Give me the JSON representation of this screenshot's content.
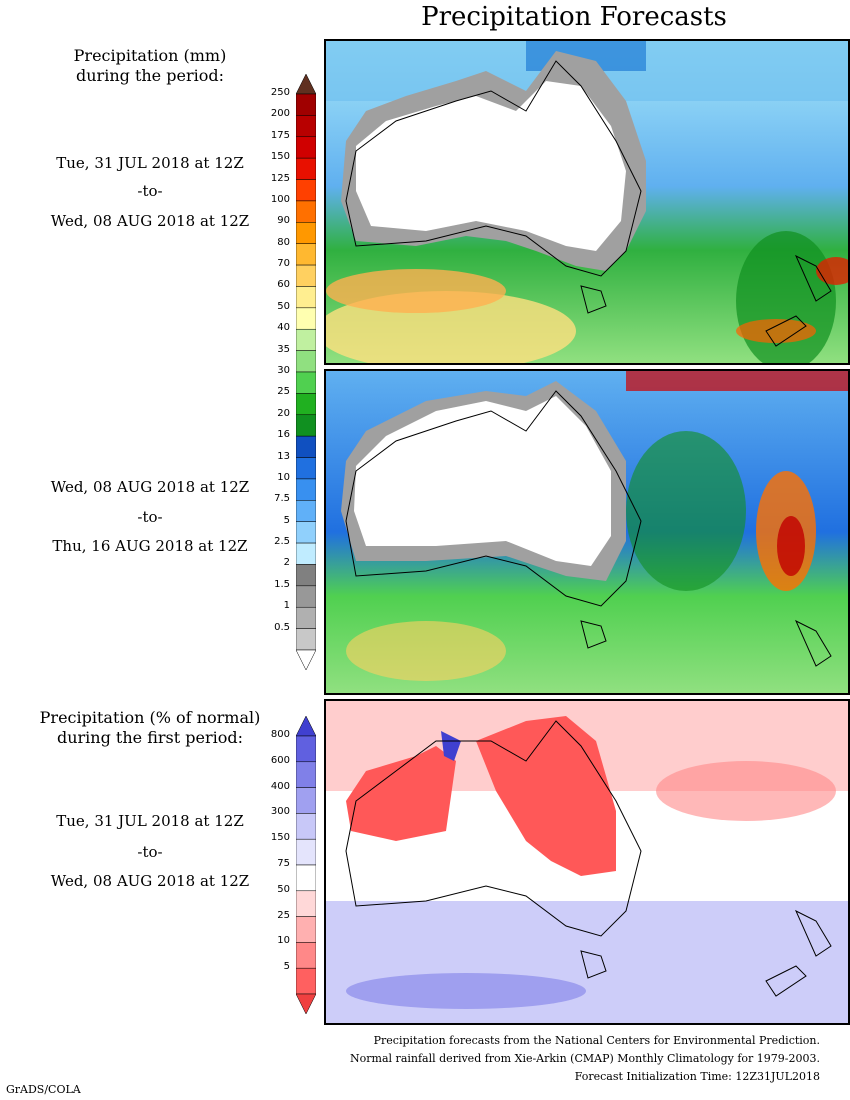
{
  "title": "Precipitation Forecasts",
  "left": {
    "header1_line1": "Precipitation (mm)",
    "header1_line2": "during the period:",
    "period1": {
      "from": "Tue, 31 JUL 2018 at 12Z",
      "to": "-to-",
      "end": "Wed, 08 AUG 2018 at 12Z"
    },
    "period2": {
      "from": "Wed, 08 AUG 2018 at 12Z",
      "to": "-to-",
      "end": "Thu, 16 AUG 2018 at 12Z"
    },
    "header2_line1": "Precipitation (% of normal)",
    "header2_line2": "during the first period:",
    "period3": {
      "from": "Tue, 31 JUL 2018 at 12Z",
      "to": "-to-",
      "end": "Wed, 08 AUG 2018 at 12Z"
    }
  },
  "mm_scale": {
    "labels": [
      "250",
      "200",
      "175",
      "150",
      "125",
      "100",
      "90",
      "80",
      "70",
      "60",
      "50",
      "40",
      "35",
      "30",
      "25",
      "20",
      "16",
      "13",
      "10",
      "7.5",
      "5",
      "2.5",
      "2",
      "1.5",
      "1",
      "0.5"
    ],
    "colors": [
      "#a00000",
      "#b80000",
      "#d00000",
      "#e81000",
      "#ff4000",
      "#ff7000",
      "#ff9800",
      "#ffb830",
      "#ffd060",
      "#ffee90",
      "#ffffb0",
      "#c0f0a0",
      "#90e080",
      "#50d050",
      "#20b020",
      "#109020",
      "#1050c0",
      "#2070e0",
      "#3890f0",
      "#60b0f8",
      "#90d0fc",
      "#c0ecff",
      "#808080",
      "#989898",
      "#b0b0b0",
      "#c8c8c8"
    ],
    "top_color": "#603020"
  },
  "pct_scale": {
    "labels": [
      "800",
      "600",
      "400",
      "300",
      "150",
      "75",
      "50",
      "25",
      "10",
      "5"
    ],
    "colors": [
      "#6060e0",
      "#8080e8",
      "#a0a0f0",
      "#c8c8f8",
      "#e4e4fc",
      "#ffffff",
      "#ffd8d8",
      "#ffb0b0",
      "#ff8888",
      "#ff6060"
    ],
    "top_color": "#4040d0",
    "bottom_color": "#f04040"
  },
  "footer": {
    "line1": "Precipitation forecasts from the National Centers for Environmental Prediction.",
    "line2": "Normal rainfall derived from Xie-Arkin (CMAP) Monthly Climatology for 1979-2003.",
    "line3": "Forecast Initialization Time: 12Z31JUL2018"
  },
  "credit": "GrADS/COLA"
}
